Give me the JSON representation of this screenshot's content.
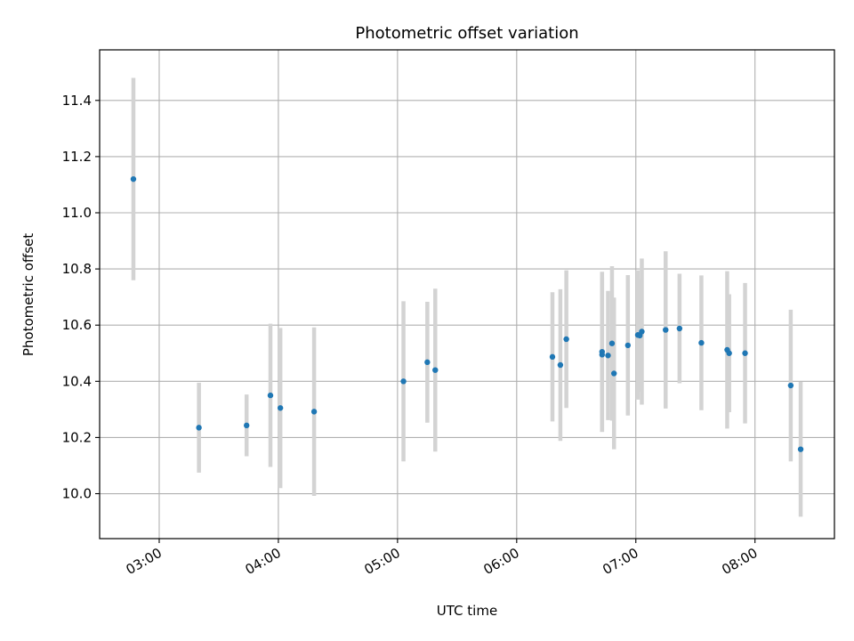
{
  "chart_data": {
    "type": "scatter",
    "title": "Photometric offset variation",
    "xlabel": "UTC time",
    "ylabel": "Photometric offset",
    "xlim": [
      "02:30",
      "08:40"
    ],
    "ylim": [
      9.84,
      11.58
    ],
    "x_ticks": [
      "03:00",
      "04:00",
      "05:00",
      "06:00",
      "07:00",
      "08:00"
    ],
    "y_ticks": [
      10.0,
      10.2,
      10.4,
      10.6,
      10.8,
      11.0,
      11.2,
      11.4
    ],
    "y_tick_labels": [
      "10.0",
      "10.2",
      "10.4",
      "10.6",
      "10.8",
      "11.0",
      "11.2",
      "11.4"
    ],
    "grid": true,
    "series": [
      {
        "marker_color": "#1f77b4",
        "errorbar_color": "#d3d3d3",
        "points": [
          {
            "x": "02:47",
            "y": 11.12,
            "err": 0.36
          },
          {
            "x": "03:20",
            "y": 10.235,
            "err": 0.16
          },
          {
            "x": "03:44",
            "y": 10.243,
            "err": 0.11
          },
          {
            "x": "03:56",
            "y": 10.35,
            "err": 0.255
          },
          {
            "x": "04:01",
            "y": 10.305,
            "err": 0.285
          },
          {
            "x": "04:18",
            "y": 10.292,
            "err": 0.3
          },
          {
            "x": "05:03",
            "y": 10.4,
            "err": 0.285
          },
          {
            "x": "05:15",
            "y": 10.468,
            "err": 0.215
          },
          {
            "x": "05:19",
            "y": 10.44,
            "err": 0.29
          },
          {
            "x": "06:18",
            "y": 10.487,
            "err": 0.23
          },
          {
            "x": "06:22",
            "y": 10.458,
            "err": 0.27
          },
          {
            "x": "06:25",
            "y": 10.55,
            "err": 0.245
          },
          {
            "x": "06:43",
            "y": 10.505,
            "err": 0.285
          },
          {
            "x": "06:43",
            "y": 10.495,
            "err": 0.275
          },
          {
            "x": "06:46",
            "y": 10.492,
            "err": 0.23
          },
          {
            "x": "06:48",
            "y": 10.535,
            "err": 0.275
          },
          {
            "x": "06:49",
            "y": 10.428,
            "err": 0.27
          },
          {
            "x": "06:56",
            "y": 10.528,
            "err": 0.25
          },
          {
            "x": "07:01",
            "y": 10.565,
            "err": 0.23
          },
          {
            "x": "07:02",
            "y": 10.563,
            "err": 0.2
          },
          {
            "x": "07:03",
            "y": 10.577,
            "err": 0.26
          },
          {
            "x": "07:15",
            "y": 10.583,
            "err": 0.28
          },
          {
            "x": "07:22",
            "y": 10.588,
            "err": 0.195
          },
          {
            "x": "07:33",
            "y": 10.537,
            "err": 0.24
          },
          {
            "x": "07:46",
            "y": 10.512,
            "err": 0.28
          },
          {
            "x": "07:47",
            "y": 10.5,
            "err": 0.21
          },
          {
            "x": "07:55",
            "y": 10.5,
            "err": 0.25
          },
          {
            "x": "08:18",
            "y": 10.385,
            "err": 0.27
          },
          {
            "x": "08:23",
            "y": 10.158,
            "err": 0.24
          }
        ]
      }
    ]
  }
}
